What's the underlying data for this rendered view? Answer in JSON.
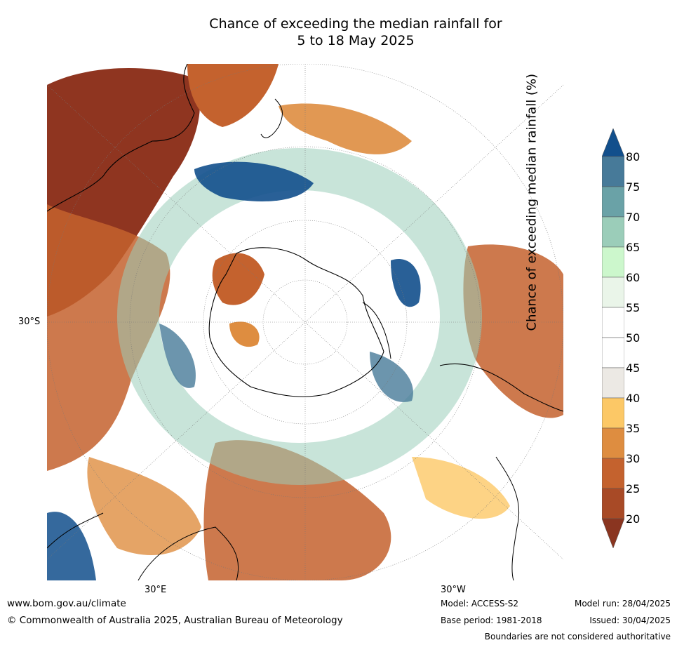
{
  "title_line1": "Chance of exceeding the median rainfall for",
  "title_line2": "5 to 18 May 2025",
  "map_labels": {
    "lat": "30°S",
    "lon_e": "30°E",
    "lon_w": "30°W"
  },
  "colorbar": {
    "label": "Chance of exceeding median rainfall (%)",
    "ticks": [
      "80",
      "75",
      "70",
      "65",
      "60",
      "55",
      "50",
      "45",
      "40",
      "35",
      "30",
      "25",
      "20"
    ],
    "colors": {
      "20-25": "#a84a26",
      "25-30": "#c4622e",
      "30-35": "#de8d40",
      "35-40": "#fcc866",
      "40-45": "#ece9e4",
      "45-50": "#ffffff",
      "50-55": "#ffffff",
      "55-60": "#eaf5e9",
      "60-65": "#ccf7cc",
      "65-70": "#9bcdb9",
      "70-75": "#6aa2a7",
      "75-80": "#477a99",
      "over": "#124f8c",
      "under": "#8a3520"
    }
  },
  "footer": {
    "website": "www.bom.gov.au/climate",
    "copyright": "© Commonwealth of Australia 2025, Australian Bureau of Meteorology",
    "model": "Model: ACCESS-S2",
    "base_period": "Base period: 1981-2018",
    "model_run": "Model run: 28/04/2025",
    "issued": "Issued: 30/04/2025",
    "disclaimer": "Boundaries are not considered authoritative"
  }
}
